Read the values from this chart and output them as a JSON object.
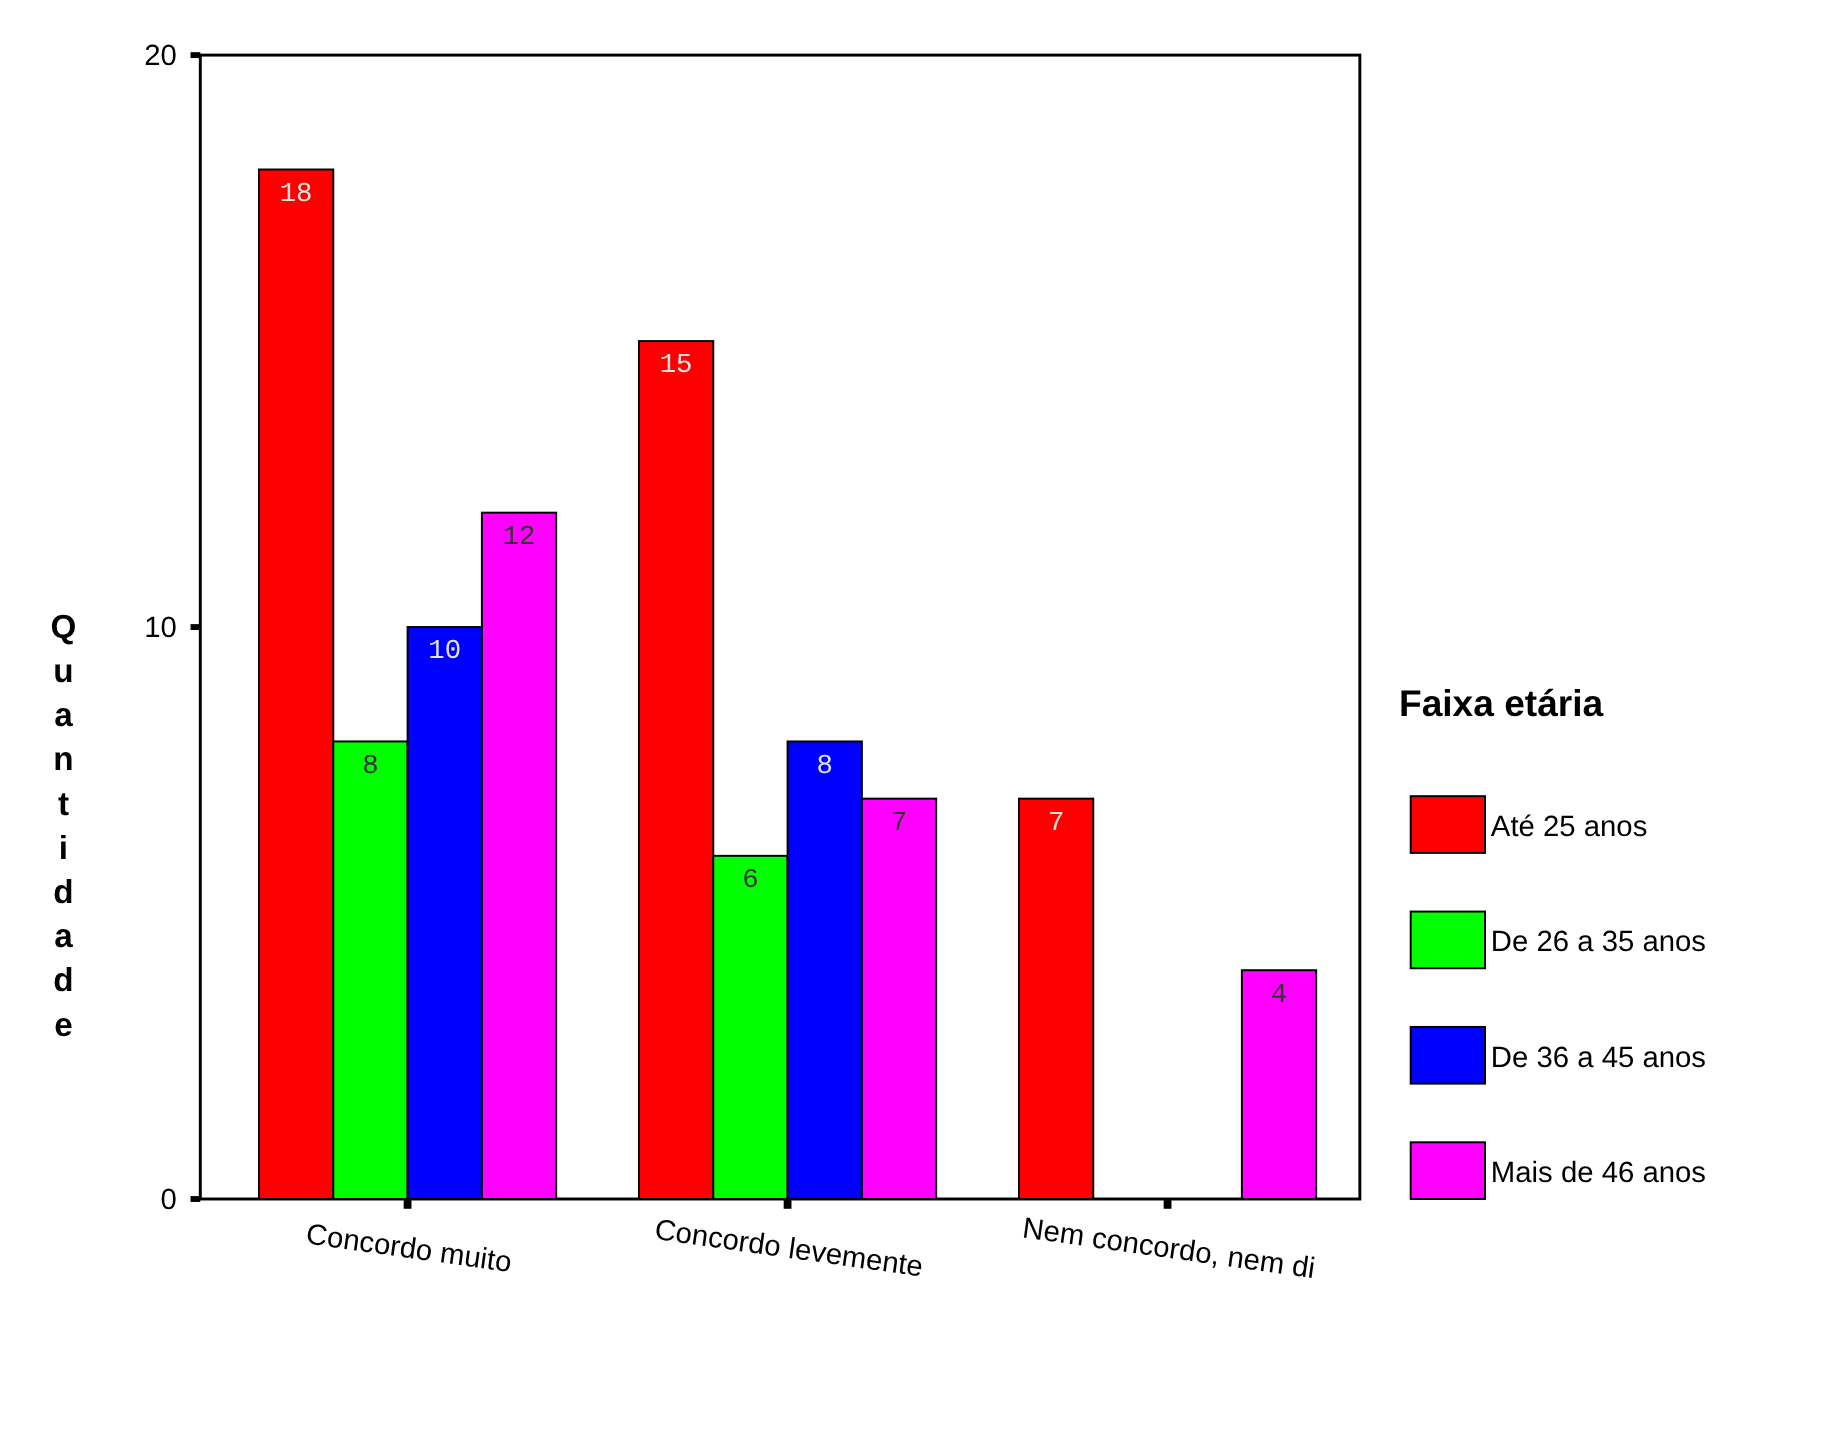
{
  "chart_data": {
    "type": "bar",
    "ylabel": "Quantidade",
    "legend_title": "Faixa etária",
    "categories": [
      "Concordo muito",
      "Concordo levemente",
      "Nem concordo, nem di"
    ],
    "series": [
      {
        "name": "Até 25 anos",
        "color": "#ff0000",
        "values": [
          18,
          15,
          7
        ]
      },
      {
        "name": "De 26 a 35 anos",
        "color": "#00ff00",
        "values": [
          8,
          6,
          null
        ]
      },
      {
        "name": "De 36 a 45 anos",
        "color": "#0000ff",
        "values": [
          10,
          8,
          null
        ]
      },
      {
        "name": "Mais de 46 anos",
        "color": "#ff00ff",
        "values": [
          12,
          7,
          4
        ]
      }
    ],
    "ylim": [
      0,
      20
    ],
    "yticks": [
      0,
      10,
      20
    ],
    "data_labels": true,
    "legend": "right",
    "grid": false
  }
}
